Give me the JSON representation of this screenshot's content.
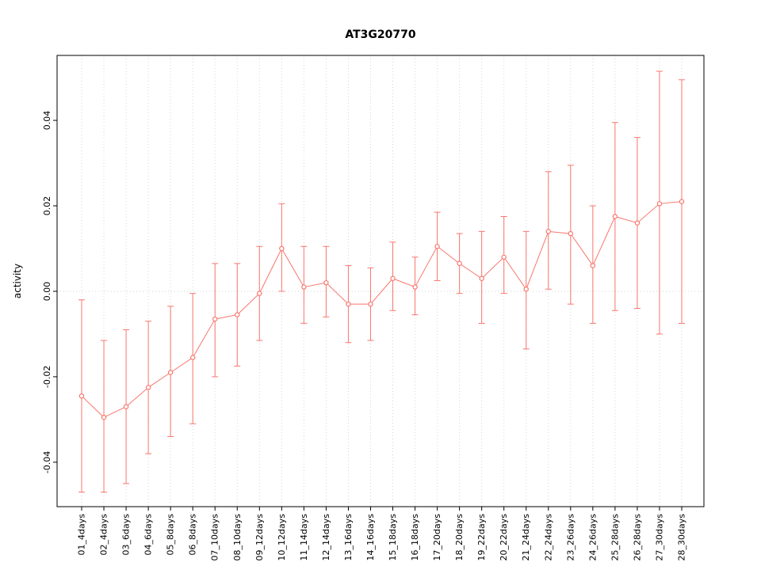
{
  "chart_data": {
    "type": "line",
    "title": "AT3G20770",
    "xlabel": "",
    "ylabel": "activity",
    "categories": [
      "01_4days",
      "02_4days",
      "03_6days",
      "04_6days",
      "05_8days",
      "06_8days",
      "07_10days",
      "08_10days",
      "09_12days",
      "10_12days",
      "11_14days",
      "12_14days",
      "13_16days",
      "14_16days",
      "15_18days",
      "16_18days",
      "17_20days",
      "18_20days",
      "19_22days",
      "20_22days",
      "21_24days",
      "22_24days",
      "23_26days",
      "24_26days",
      "25_28days",
      "26_28days",
      "27_30days",
      "28_30days"
    ],
    "series": [
      {
        "name": "activity",
        "means": [
          -0.0245,
          -0.0295,
          -0.027,
          -0.0225,
          -0.019,
          -0.0155,
          -0.0065,
          -0.0055,
          -0.0005,
          0.01,
          0.001,
          0.002,
          -0.003,
          -0.003,
          0.003,
          0.001,
          0.0105,
          0.0065,
          0.003,
          0.008,
          0.0005,
          0.014,
          0.0135,
          0.006,
          0.0175,
          0.016,
          0.0205,
          0.021
        ],
        "lower": [
          -0.047,
          -0.047,
          -0.045,
          -0.038,
          -0.034,
          -0.031,
          -0.02,
          -0.0175,
          -0.0115,
          0.0,
          -0.0075,
          -0.006,
          -0.012,
          -0.0115,
          -0.0045,
          -0.0055,
          0.0025,
          -0.0005,
          -0.0075,
          -0.0005,
          -0.0135,
          0.0005,
          -0.003,
          -0.0075,
          -0.0045,
          -0.004,
          -0.01,
          -0.0075
        ],
        "upper": [
          -0.002,
          -0.0115,
          -0.009,
          -0.007,
          -0.0035,
          -0.0005,
          0.0065,
          0.0065,
          0.0105,
          0.0205,
          0.0105,
          0.0105,
          0.006,
          0.0055,
          0.0115,
          0.008,
          0.0185,
          0.0135,
          0.014,
          0.0175,
          0.014,
          0.028,
          0.0295,
          0.02,
          0.0395,
          0.036,
          0.0515,
          0.0495
        ]
      }
    ],
    "error_bars": true,
    "ylim": [
      -0.0504,
      0.0552
    ],
    "ytick_values": [
      -0.04,
      -0.02,
      0,
      0.02,
      0.04
    ],
    "ytick_labels": [
      "-0.04",
      "-0.02",
      "0.00",
      "0.02",
      "0.04"
    ],
    "grid": "vertical dotted gridline per category, dotted horizontal line at y=0",
    "legend_position": "none",
    "colors": {
      "series": "#f8766d",
      "grid": "#d6d6d6",
      "axis": "#000000",
      "background": "#ffffff"
    }
  }
}
